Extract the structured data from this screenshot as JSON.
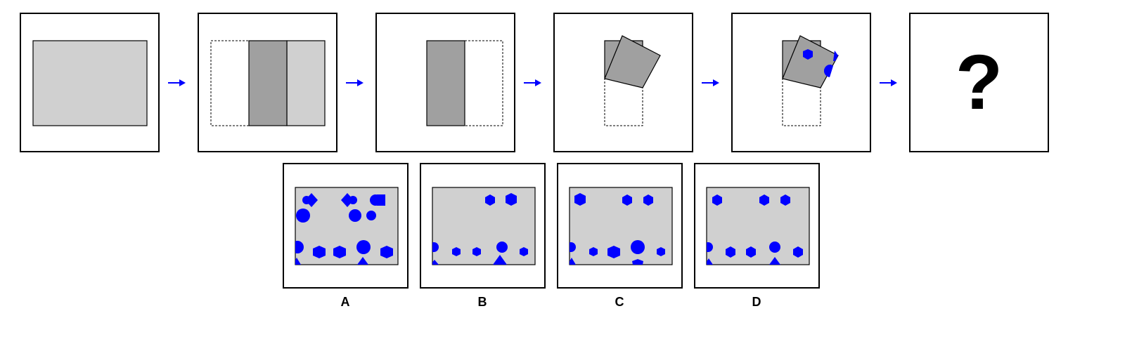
{
  "question_mark": "?",
  "options": [
    {
      "label": "A"
    },
    {
      "label": "B"
    },
    {
      "label": "C"
    },
    {
      "label": "D"
    }
  ],
  "colors": {
    "paper": "#d0d0d0",
    "folded": "#a0a0a0",
    "hole": "#0000ff",
    "arrow": "#0000ff",
    "outline": "#000000"
  },
  "icons": [
    "right-arrow-icon",
    "hexagon-icon",
    "circle-icon",
    "triangle-icon",
    "diamond-icon",
    "square-icon"
  ]
}
